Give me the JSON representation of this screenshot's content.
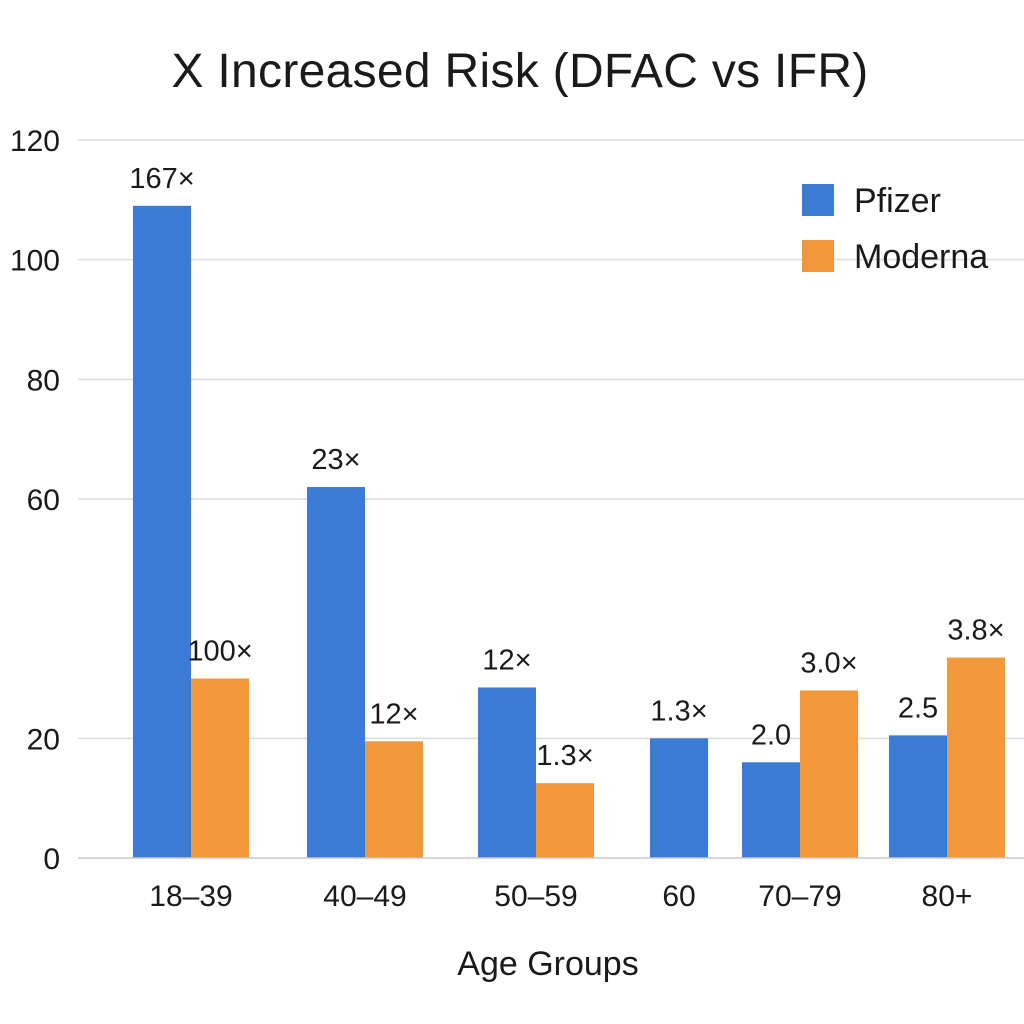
{
  "chart_data": {
    "type": "bar",
    "title": "X Increased Risk (DFAC vs IFR)",
    "xlabel": "Age Groups",
    "ylabel": "",
    "ylim": [
      0,
      120
    ],
    "yticks": [
      0,
      20,
      60,
      80,
      100,
      120
    ],
    "grid": true,
    "legend_position": "top-right",
    "categories": [
      "18–39",
      "40–49",
      "50–59",
      "60",
      "70–79",
      "80+"
    ],
    "series": [
      {
        "name": "Pfizer",
        "color": "#3a7bd5",
        "values": [
          109,
          62,
          28.5,
          20,
          16,
          20.5
        ],
        "labels": [
          "167×",
          "23×",
          "12×",
          "1.3×",
          "2.0",
          "2.5"
        ]
      },
      {
        "name": "Moderna",
        "color": "#f0983a",
        "values": [
          30,
          19.5,
          12.5,
          null,
          28,
          33.5
        ],
        "labels": [
          "100×",
          "12×",
          "1.3×",
          "",
          "3.0×",
          "3.8×"
        ]
      }
    ]
  }
}
